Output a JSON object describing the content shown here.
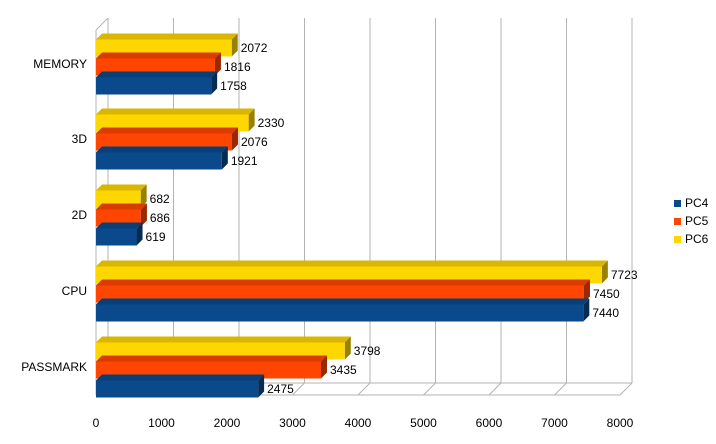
{
  "chart_data": {
    "type": "bar",
    "orientation": "horizontal",
    "style": "3d",
    "categories": [
      "MEMORY",
      "3D",
      "2D",
      "CPU",
      "PASSMARK"
    ],
    "series": [
      {
        "name": "PC6",
        "color": "#FFD700",
        "values": [
          2072,
          2330,
          682,
          7723,
          3798
        ]
      },
      {
        "name": "PC5",
        "color": "#FF4500",
        "values": [
          1816,
          2076,
          686,
          7450,
          3435
        ]
      },
      {
        "name": "PC4",
        "color": "#0A4A8C",
        "values": [
          1758,
          1921,
          619,
          7440,
          2475
        ]
      }
    ],
    "xlim": [
      0,
      8000
    ],
    "xticks": [
      "0",
      "1000",
      "2000",
      "3000",
      "4000",
      "5000",
      "6000",
      "7000",
      "8000"
    ],
    "grid": true,
    "legend": {
      "position": "right",
      "items": [
        {
          "name": "PC4",
          "color": "#0A4A8C"
        },
        {
          "name": "PC5",
          "color": "#FF4500"
        },
        {
          "name": "PC6",
          "color": "#FFD700"
        }
      ]
    }
  }
}
